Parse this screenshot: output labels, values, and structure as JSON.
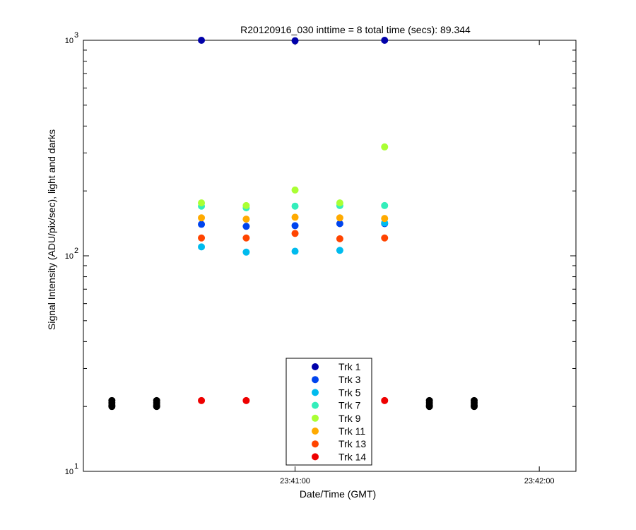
{
  "chart_data": {
    "type": "scatter",
    "title": "R20120916_030 inttime = 8 total time (secs): 89.344",
    "xlabel": "Date/Time (GMT)",
    "ylabel": "Signal Intensity (ADU/pix/sec), light and darks",
    "yscale": "log",
    "ylim": [
      10,
      1000
    ],
    "xlim": [
      "23:40:08",
      "23:42:09"
    ],
    "x_ticks": [
      "23:41:00",
      "23:42:00"
    ],
    "y_ticks": [
      {
        "base": "10",
        "exp": "1",
        "value": 10
      },
      {
        "base": "10",
        "exp": "2",
        "value": 100
      },
      {
        "base": "10",
        "exp": "3",
        "value": 1000
      }
    ],
    "legend_position": "bottom-center",
    "grid": false,
    "series": [
      {
        "name": "Trk 1",
        "color": "#0000aa",
        "points": [
          [
            "23:40:37",
            1000
          ],
          [
            "23:41:00",
            995
          ],
          [
            "23:41:22",
            1000
          ]
        ]
      },
      {
        "name": "Trk 3",
        "color": "#0044ee",
        "points": [
          [
            "23:40:37",
            140
          ],
          [
            "23:40:48",
            137
          ],
          [
            "23:41:00",
            138
          ],
          [
            "23:41:11",
            141
          ],
          [
            "23:41:22",
            141
          ]
        ]
      },
      {
        "name": "Trk 5",
        "color": "#00bbee",
        "points": [
          [
            "23:40:37",
            110
          ],
          [
            "23:40:48",
            104
          ],
          [
            "23:41:00",
            105
          ],
          [
            "23:41:11",
            106
          ],
          [
            "23:41:22",
            142
          ]
        ]
      },
      {
        "name": "Trk 7",
        "color": "#33eebb",
        "points": [
          [
            "23:40:37",
            170
          ],
          [
            "23:40:48",
            167
          ],
          [
            "23:41:00",
            170
          ],
          [
            "23:41:11",
            171
          ],
          [
            "23:41:22",
            171
          ]
        ]
      },
      {
        "name": "Trk 9",
        "color": "#aaff33",
        "points": [
          [
            "23:40:37",
            176
          ],
          [
            "23:40:48",
            171
          ],
          [
            "23:41:00",
            202
          ],
          [
            "23:41:11",
            176
          ],
          [
            "23:41:22",
            320
          ]
        ]
      },
      {
        "name": "Trk 11",
        "color": "#ffaa00",
        "points": [
          [
            "23:40:37",
            150
          ],
          [
            "23:40:48",
            148
          ],
          [
            "23:41:00",
            151
          ],
          [
            "23:41:11",
            150
          ],
          [
            "23:41:22",
            149
          ]
        ]
      },
      {
        "name": "Trk 13",
        "color": "#ff4400",
        "points": [
          [
            "23:40:37",
            121
          ],
          [
            "23:40:48",
            121
          ],
          [
            "23:41:00",
            127
          ],
          [
            "23:41:11",
            120
          ],
          [
            "23:41:22",
            121
          ]
        ]
      },
      {
        "name": "Trk 14",
        "color": "#ee0000",
        "points": [
          [
            "23:40:37",
            21.3
          ],
          [
            "23:40:48",
            21.3
          ],
          [
            "23:41:22",
            21.3
          ]
        ]
      },
      {
        "color": "#000000",
        "points": [
          [
            "23:40:15",
            21.3
          ],
          [
            "23:40:15",
            20.8
          ],
          [
            "23:40:15",
            20.3
          ],
          [
            "23:40:15",
            20.0
          ],
          [
            "23:40:26",
            21.3
          ],
          [
            "23:40:26",
            20.8
          ],
          [
            "23:40:26",
            20.3
          ],
          [
            "23:40:26",
            20.0
          ],
          [
            "23:41:33",
            21.3
          ],
          [
            "23:41:33",
            20.8
          ],
          [
            "23:41:33",
            20.3
          ],
          [
            "23:41:33",
            20.0
          ],
          [
            "23:41:44",
            21.3
          ],
          [
            "23:41:44",
            20.8
          ],
          [
            "23:41:44",
            20.3
          ],
          [
            "23:41:44",
            20.0
          ]
        ]
      }
    ]
  }
}
